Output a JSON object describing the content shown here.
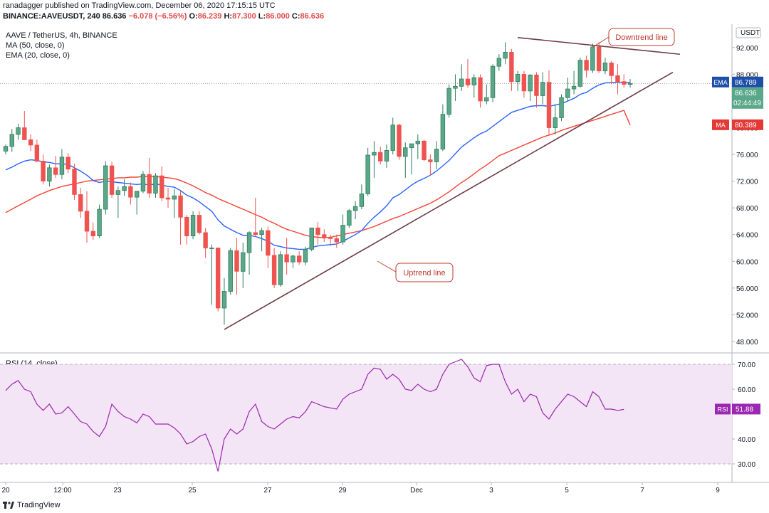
{
  "header": {
    "published": "ranadagger published on TradingView.com, December 06, 2020 17:15:15 UTC",
    "symbol": "BINANCE:AAVEUSDT, 240",
    "last": "86.636",
    "change": "−6.078 (−6.56%)",
    "ohlc_o_label": "O:",
    "ohlc_o": "86.239",
    "ohlc_h_label": "H:",
    "ohlc_h": "87.300",
    "ohlc_l_label": "L:",
    "ohlc_l": "86.000",
    "ohlc_c_label": "C:",
    "ohlc_c": "86.636"
  },
  "legend": {
    "title": "AAVE / TetherUS, 4h, BINANCE",
    "ma": "MA (50, close, 0)",
    "ema": "EMA (20, close, 0)",
    "rsi": "RSI (14, close)"
  },
  "footer": {
    "brand": "TradingView"
  },
  "colors": {
    "up": "#26a69a",
    "down": "#ef5350",
    "candle_up_fill": "#2e7d5b",
    "ema": "#2962ff",
    "ma": "#f44336",
    "trend": "#6d3b46",
    "rsi": "#9c27b0",
    "rsi_band": "#f3e5f5"
  },
  "chart_data": [
    {
      "type": "candlestick",
      "title": "AAVE / TetherUS, 4h, BINANCE",
      "y_axis": {
        "label": "USDT",
        "range": [
          46.5,
          95.5
        ],
        "ticks": [
          "92.000",
          "88.000",
          "84.000",
          "80.000",
          "76.000",
          "72.000",
          "68.000",
          "64.000",
          "60.000",
          "56.000",
          "52.000",
          "48.000"
        ]
      },
      "x_axis": {
        "ticks": [
          "20",
          "12:00",
          "23",
          "25",
          "27",
          "29",
          "Dec",
          "3",
          "5",
          "7",
          "9"
        ]
      },
      "candles": [
        [
          76.5,
          77.5,
          76.0,
          77.2
        ],
        [
          77.2,
          79.8,
          76.4,
          79.0
        ],
        [
          79.0,
          80.6,
          78.2,
          80.0
        ],
        [
          80.0,
          82.5,
          78.5,
          78.2
        ],
        [
          78.2,
          79.0,
          76.5,
          77.4
        ],
        [
          77.4,
          78.2,
          74.8,
          75.0
        ],
        [
          75.0,
          76.0,
          71.5,
          72.0
        ],
        [
          72.0,
          74.5,
          71.2,
          74.0
        ],
        [
          74.0,
          75.8,
          72.5,
          73.0
        ],
        [
          73.0,
          76.8,
          72.3,
          75.6
        ],
        [
          75.6,
          76.2,
          73.2,
          73.8
        ],
        [
          73.8,
          74.6,
          69.2,
          70.0
        ],
        [
          70.0,
          71.0,
          66.5,
          67.5
        ],
        [
          67.5,
          70.5,
          62.8,
          64.5
        ],
        [
          64.5,
          65.8,
          63.2,
          63.8
        ],
        [
          63.8,
          68.5,
          63.5,
          67.8
        ],
        [
          67.8,
          75.0,
          67.0,
          74.3
        ],
        [
          74.3,
          74.9,
          69.5,
          70.0
        ],
        [
          70.0,
          71.2,
          66.5,
          70.6
        ],
        [
          70.6,
          72.3,
          69.8,
          71.2
        ],
        [
          71.2,
          71.8,
          68.5,
          69.6
        ],
        [
          69.6,
          70.2,
          67.0,
          70.5
        ],
        [
          70.5,
          73.5,
          70.2,
          73.0
        ],
        [
          73.0,
          75.5,
          69.5,
          70.2
        ],
        [
          70.2,
          73.2,
          69.5,
          72.8
        ],
        [
          72.8,
          74.2,
          69.0,
          69.5
        ],
        [
          69.5,
          71.0,
          68.0,
          69.3
        ],
        [
          69.3,
          70.8,
          66.5,
          69.8
        ],
        [
          69.8,
          70.5,
          62.5,
          66.6
        ],
        [
          66.6,
          66.9,
          62.5,
          63.8
        ],
        [
          63.8,
          67.5,
          63.3,
          66.9
        ],
        [
          66.9,
          67.5,
          64.0,
          64.3
        ],
        [
          64.3,
          65.0,
          60.5,
          62.0
        ],
        [
          62.0,
          62.5,
          53.5,
          62.0
        ],
        [
          62.0,
          62.0,
          52.5,
          53.0
        ],
        [
          53.0,
          57.5,
          50.5,
          55.5
        ],
        [
          55.5,
          62.0,
          55.0,
          61.6
        ],
        [
          61.6,
          63.5,
          55.0,
          58.5
        ],
        [
          58.5,
          62.8,
          56.0,
          61.3
        ],
        [
          61.3,
          64.5,
          58.0,
          64.3
        ],
        [
          64.3,
          69.5,
          63.8,
          64.0
        ],
        [
          64.0,
          65.0,
          61.5,
          64.6
        ],
        [
          64.6,
          65.2,
          59.0,
          60.9
        ],
        [
          60.9,
          62.0,
          56.0,
          56.5
        ],
        [
          56.5,
          61.5,
          56.2,
          61.0
        ],
        [
          61.0,
          63.5,
          58.0,
          59.9
        ],
        [
          59.9,
          61.0,
          59.0,
          60.8
        ],
        [
          60.8,
          61.5,
          59.5,
          59.9
        ],
        [
          59.9,
          62.2,
          59.4,
          61.8
        ],
        [
          61.8,
          65.0,
          61.5,
          65.0
        ],
        [
          65.0,
          65.9,
          62.5,
          64.0
        ],
        [
          64.0,
          64.8,
          62.9,
          63.6
        ],
        [
          63.6,
          64.0,
          62.3,
          63.4
        ],
        [
          63.4,
          64.0,
          62.0,
          62.9
        ],
        [
          62.9,
          67.0,
          62.5,
          65.4
        ],
        [
          65.4,
          67.8,
          65.0,
          67.6
        ],
        [
          67.6,
          69.0,
          66.3,
          68.2
        ],
        [
          68.2,
          71.5,
          67.8,
          70.1
        ],
        [
          70.1,
          77.0,
          69.8,
          75.9
        ],
        [
          75.9,
          78.0,
          72.5,
          76.3
        ],
        [
          76.3,
          77.2,
          74.5,
          75.0
        ],
        [
          75.0,
          77.5,
          74.0,
          76.6
        ],
        [
          76.6,
          81.5,
          76.0,
          80.4
        ],
        [
          80.4,
          80.6,
          75.2,
          75.7
        ],
        [
          75.7,
          77.8,
          72.5,
          77.0
        ],
        [
          77.0,
          77.5,
          73.0,
          77.6
        ],
        [
          77.6,
          79.0,
          75.3,
          78.0
        ],
        [
          78.0,
          78.2,
          75.0,
          75.2
        ],
        [
          75.2,
          76.0,
          72.8,
          74.9
        ],
        [
          74.9,
          78.0,
          73.8,
          76.8
        ],
        [
          76.8,
          83.5,
          76.5,
          82.0
        ],
        [
          82.0,
          86.5,
          81.5,
          85.9
        ],
        [
          85.9,
          88.0,
          84.0,
          86.2
        ],
        [
          86.2,
          89.5,
          85.5,
          87.3
        ],
        [
          87.3,
          90.3,
          86.0,
          86.4
        ],
        [
          86.4,
          88.0,
          84.5,
          87.5
        ],
        [
          87.5,
          88.0,
          83.0,
          84.0
        ],
        [
          84.0,
          86.5,
          83.5,
          84.5
        ],
        [
          84.5,
          89.5,
          83.8,
          89.2
        ],
        [
          89.2,
          91.0,
          88.5,
          90.4
        ],
        [
          90.4,
          92.8,
          89.5,
          91.3
        ],
        [
          91.3,
          91.8,
          85.5,
          86.9
        ],
        [
          86.9,
          88.5,
          85.5,
          88.0
        ],
        [
          88.0,
          88.5,
          84.5,
          85.5
        ],
        [
          85.5,
          88.0,
          84.0,
          87.9
        ],
        [
          87.9,
          88.3,
          83.0,
          84.8
        ],
        [
          84.8,
          88.3,
          83.5,
          86.8
        ],
        [
          86.8,
          88.6,
          78.8,
          80.0
        ],
        [
          80.0,
          83.5,
          79.0,
          81.5
        ],
        [
          81.5,
          85.0,
          81.0,
          84.5
        ],
        [
          84.5,
          87.5,
          84.0,
          85.8
        ],
        [
          85.8,
          88.5,
          85.0,
          86.2
        ],
        [
          86.2,
          90.5,
          86.0,
          90.1
        ],
        [
          90.1,
          90.8,
          87.5,
          88.6
        ],
        [
          88.6,
          92.6,
          88.2,
          92.1
        ],
        [
          92.1,
          92.8,
          88.2,
          88.5
        ],
        [
          88.5,
          90.5,
          88.0,
          89.7
        ],
        [
          89.7,
          90.0,
          86.5,
          87.8
        ],
        [
          87.8,
          89.5,
          85.0,
          86.9
        ],
        [
          86.9,
          88.0,
          86.0,
          86.5
        ],
        [
          86.5,
          87.3,
          86.0,
          86.6
        ]
      ],
      "ema20": [
        73.7,
        74.1,
        74.6,
        75.0,
        75.2,
        75.1,
        74.9,
        74.8,
        74.6,
        74.6,
        74.5,
        74.0,
        73.5,
        72.9,
        72.1,
        71.8,
        72.0,
        71.9,
        71.8,
        71.7,
        71.6,
        71.5,
        71.6,
        71.4,
        71.6,
        71.4,
        71.2,
        71.1,
        70.6,
        69.9,
        69.5,
        68.9,
        68.2,
        67.5,
        66.2,
        65.3,
        64.8,
        64.3,
        63.9,
        63.9,
        63.7,
        63.4,
        63.0,
        62.4,
        62.2,
        62.0,
        61.9,
        61.8,
        61.8,
        62.1,
        62.3,
        62.4,
        62.5,
        62.6,
        63.0,
        63.5,
        64.0,
        64.6,
        65.7,
        66.6,
        67.4,
        68.3,
        69.5,
        70.0,
        70.7,
        71.4,
        72.0,
        72.4,
        72.9,
        73.5,
        74.3,
        75.1,
        76.1,
        77.1,
        77.8,
        78.5,
        79.1,
        79.5,
        80.2,
        80.9,
        81.6,
        82.3,
        82.6,
        82.9,
        83.2,
        83.3,
        83.3,
        83.2,
        83.4,
        83.6,
        84.0,
        84.4,
        85.0,
        85.3,
        85.9,
        86.4,
        86.7,
        86.8,
        86.8,
        86.8,
        86.79
      ],
      "ma50": [
        67.3,
        67.8,
        68.3,
        68.8,
        69.3,
        69.8,
        70.2,
        70.6,
        70.9,
        71.2,
        71.4,
        71.6,
        71.8,
        72.0,
        72.1,
        72.2,
        72.3,
        72.4,
        72.5,
        72.5,
        72.6,
        72.6,
        72.7,
        72.7,
        72.7,
        72.6,
        72.5,
        72.4,
        72.1,
        71.7,
        71.3,
        70.8,
        70.3,
        69.9,
        69.4,
        69.0,
        68.6,
        68.2,
        67.8,
        67.4,
        67.0,
        66.6,
        66.1,
        65.7,
        65.2,
        64.8,
        64.5,
        64.2,
        63.9,
        63.7,
        63.6,
        63.5,
        63.6,
        63.8,
        64.0,
        64.2,
        64.4,
        64.6,
        64.9,
        65.2,
        65.6,
        66.0,
        66.4,
        66.7,
        67.1,
        67.5,
        67.9,
        68.3,
        68.7,
        69.2,
        69.8,
        70.4,
        71.1,
        71.8,
        72.4,
        73.1,
        73.8,
        74.4,
        75.1,
        75.8,
        76.2,
        76.6,
        77.0,
        77.4,
        77.8,
        78.2,
        78.6,
        78.9,
        79.2,
        79.6,
        79.9,
        80.2,
        80.5,
        80.8,
        81.1,
        81.4,
        81.7,
        82.0,
        82.3,
        82.6,
        80.39
      ],
      "price_labels": {
        "ema_label": "EMA",
        "ema_value": "86.789",
        "last_value": "86.636",
        "countdown": "02:44:49",
        "ma_label": "MA",
        "ma_value": "80.389"
      },
      "annotations": [
        {
          "text": "Downtrend line",
          "line": [
            [
              3.5,
              93.5
            ],
            [
              8.0,
              91.0
            ]
          ]
        },
        {
          "text": "Uptrend line",
          "line": [
            [
              26.0,
              49.8
            ],
            [
              8.2,
              88.3
            ]
          ]
        }
      ]
    },
    {
      "type": "line",
      "title": "RSI (14, close)",
      "y_axis": {
        "ticks": [
          "70.00",
          "60.00",
          "40.00",
          "30.00"
        ],
        "range": [
          26,
          74
        ],
        "band": [
          30,
          70
        ]
      },
      "series": [
        {
          "name": "RSI",
          "values": [
            59.5,
            62,
            63.5,
            60,
            59,
            54,
            51.5,
            54,
            50,
            50.5,
            53,
            50,
            47,
            46,
            43,
            41,
            45,
            54,
            51,
            49,
            48,
            46.5,
            50,
            49,
            46,
            46,
            46,
            44.5,
            42,
            38,
            39,
            41,
            42,
            36,
            27,
            40,
            44,
            42,
            44,
            51,
            54,
            47,
            45,
            44,
            46,
            48,
            49,
            48.5,
            51,
            55,
            54,
            53,
            52.5,
            52,
            56,
            58,
            59,
            60,
            66,
            68.5,
            68,
            64,
            66,
            64,
            60,
            59.5,
            62,
            60,
            59,
            60,
            66,
            70,
            71,
            72,
            69,
            64.5,
            63,
            69.5,
            70,
            70,
            63,
            58,
            60,
            55,
            58,
            57,
            50.5,
            48,
            52,
            55,
            58,
            57,
            55,
            53,
            59,
            57,
            52,
            52,
            51.5,
            51.88
          ]
        }
      ],
      "last_label": "RSI",
      "last_value": "51.88"
    }
  ]
}
